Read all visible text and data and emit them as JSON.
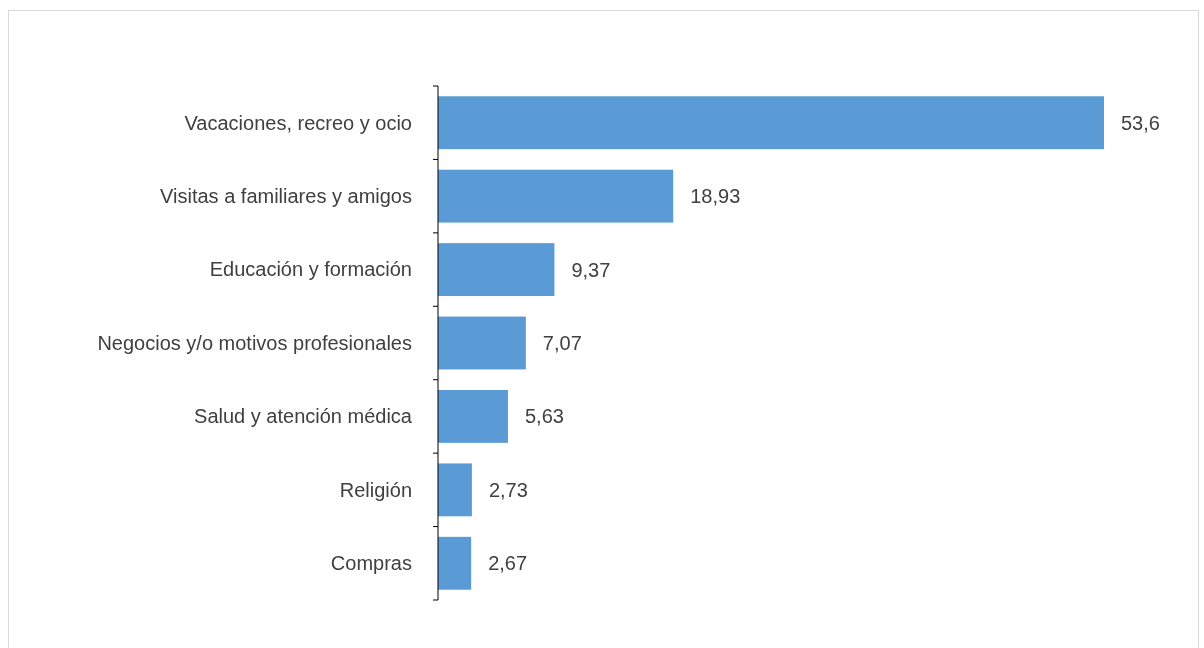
{
  "chart_data": {
    "type": "bar",
    "orientation": "horizontal",
    "categories": [
      "Vacaciones, recreo y ocio",
      "Visitas a familiares y amigos",
      "Educación y formación",
      "Negocios y/o motivos profesionales",
      "Salud y atención médica",
      "Religión",
      "Compras"
    ],
    "values": [
      53.6,
      18.93,
      9.37,
      7.07,
      5.63,
      2.73,
      2.67
    ],
    "value_labels": [
      "53,6",
      "18,93",
      "9,37",
      "7,07",
      "5,63",
      "2,73",
      "2,67"
    ],
    "color": "#5b9bd5"
  }
}
